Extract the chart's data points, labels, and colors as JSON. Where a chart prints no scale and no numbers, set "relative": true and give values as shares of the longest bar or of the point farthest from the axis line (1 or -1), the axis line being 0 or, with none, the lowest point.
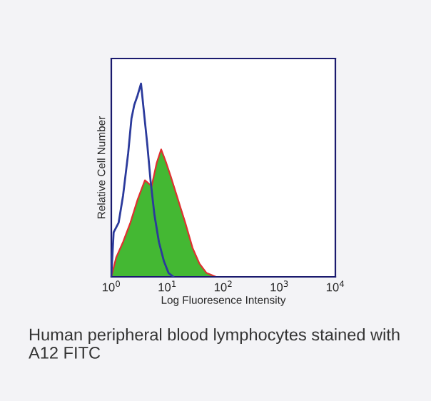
{
  "chart_data": {
    "type": "line",
    "relative": true,
    "log": "x",
    "xlabel": "Log Fluoresence Intensity",
    "ylabel": "Relative Cell Number",
    "xlim": [
      1,
      10000
    ],
    "xticks": [
      {
        "value": 1,
        "label": "10$^{0}$"
      },
      {
        "value": 10,
        "label": "10$^{1}$"
      },
      {
        "value": 100,
        "label": "10$^{2}$"
      },
      {
        "value": 1000,
        "label": "10$^{3}$"
      },
      {
        "value": 10000,
        "label": "10$^{4}$"
      }
    ],
    "series": [
      {
        "type": "area",
        "color": "#44b833",
        "x": [
          1,
          1.22,
          1.62,
          2.19,
          2.95,
          3.98,
          5.25,
          6.46,
          7.76,
          9.55,
          11.5,
          15.5,
          20.9,
          28.2,
          37.2,
          50.1,
          74.1
        ],
        "values": [
          0,
          0.1,
          0.18,
          0.28,
          0.4,
          0.5,
          0.47,
          0.59,
          0.66,
          0.59,
          0.52,
          0.4,
          0.28,
          0.15,
          0.07,
          0.02,
          0
        ]
      },
      {
        "color": "#2b3a9c",
        "x": [
          1,
          1.1,
          1.35,
          1.62,
          2.0,
          2.29,
          2.57,
          2.95,
          3.39,
          3.8,
          4.37,
          5.01,
          5.89,
          7.08,
          8.71,
          10.5,
          12.9
        ],
        "values": [
          0.005,
          0.23,
          0.28,
          0.42,
          0.64,
          0.82,
          0.89,
          0.94,
          1.0,
          0.86,
          0.69,
          0.5,
          0.32,
          0.18,
          0.08,
          0.02,
          0
        ]
      }
    ],
    "grid": false,
    "legend": false,
    "annotations": [
      "Human peripheral blood lymphocytes stained with A12 FITC"
    ]
  }
}
